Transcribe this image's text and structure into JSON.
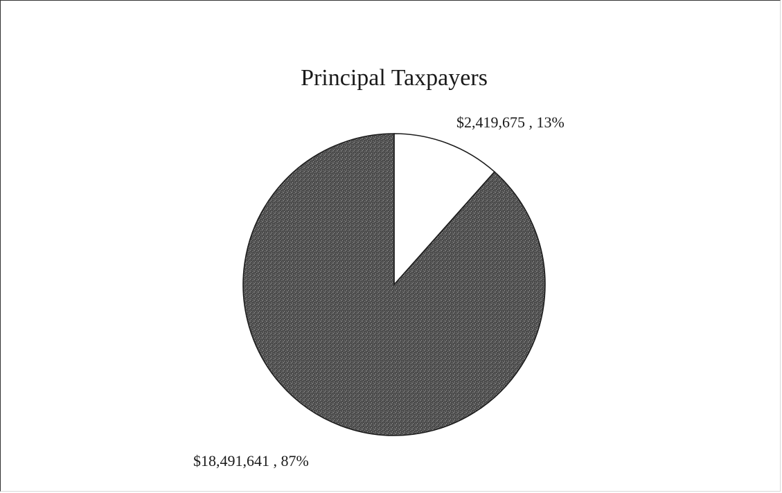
{
  "chart_data": {
    "type": "pie",
    "title": "Principal Taxpayers",
    "slices": [
      {
        "value": 2419675,
        "percent": 13,
        "label": "$2,419,675 , 13%",
        "color": "#ffffff"
      },
      {
        "value": 18491641,
        "percent": 87,
        "label": "$18,491,641 , 87%",
        "color": "#555555"
      }
    ],
    "legend": "none",
    "fill_texture": "stippled-dark-gray"
  }
}
